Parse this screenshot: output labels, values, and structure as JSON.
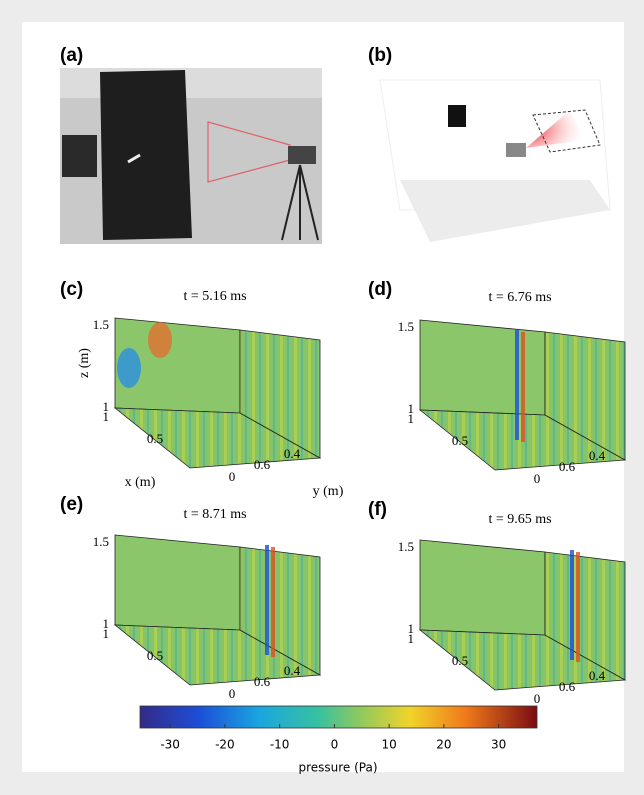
{
  "panels": [
    {
      "label": "(a)"
    },
    {
      "label": "(b)"
    },
    {
      "label": "(c)",
      "title": "t = 5.16 ms",
      "z_ticks": [
        "1.5",
        "1"
      ],
      "x_ticks": [
        "1",
        "0.5",
        "0"
      ],
      "y_ticks": [
        "0.6",
        "0.4"
      ],
      "z_label": "z (m)",
      "x_label": "x (m)",
      "y_label": "y (m)"
    },
    {
      "label": "(d)",
      "title": "t = 6.76 ms",
      "z_ticks": [
        "1.5",
        "1"
      ],
      "x_ticks": [
        "1",
        "0.5",
        "0"
      ],
      "y_ticks": [
        "0.6",
        "0.4"
      ]
    },
    {
      "label": "(e)",
      "title": "t = 8.71 ms",
      "z_ticks": [
        "1.5",
        "1"
      ],
      "x_ticks": [
        "1",
        "0.5",
        "0"
      ],
      "y_ticks": [
        "0.6",
        "0.4"
      ]
    },
    {
      "label": "(f)",
      "title": "t = 9.65 ms",
      "z_ticks": [
        "1.5",
        "1"
      ],
      "x_ticks": [
        "1",
        "0.5",
        "0"
      ],
      "y_ticks": [
        "0.6",
        "0.4"
      ]
    }
  ],
  "colorbar": {
    "lim": [
      -35.5,
      37
    ],
    "ticks": [
      -30,
      -20,
      -10,
      0,
      10,
      20,
      30
    ],
    "label": "pressure (Pa)"
  }
}
